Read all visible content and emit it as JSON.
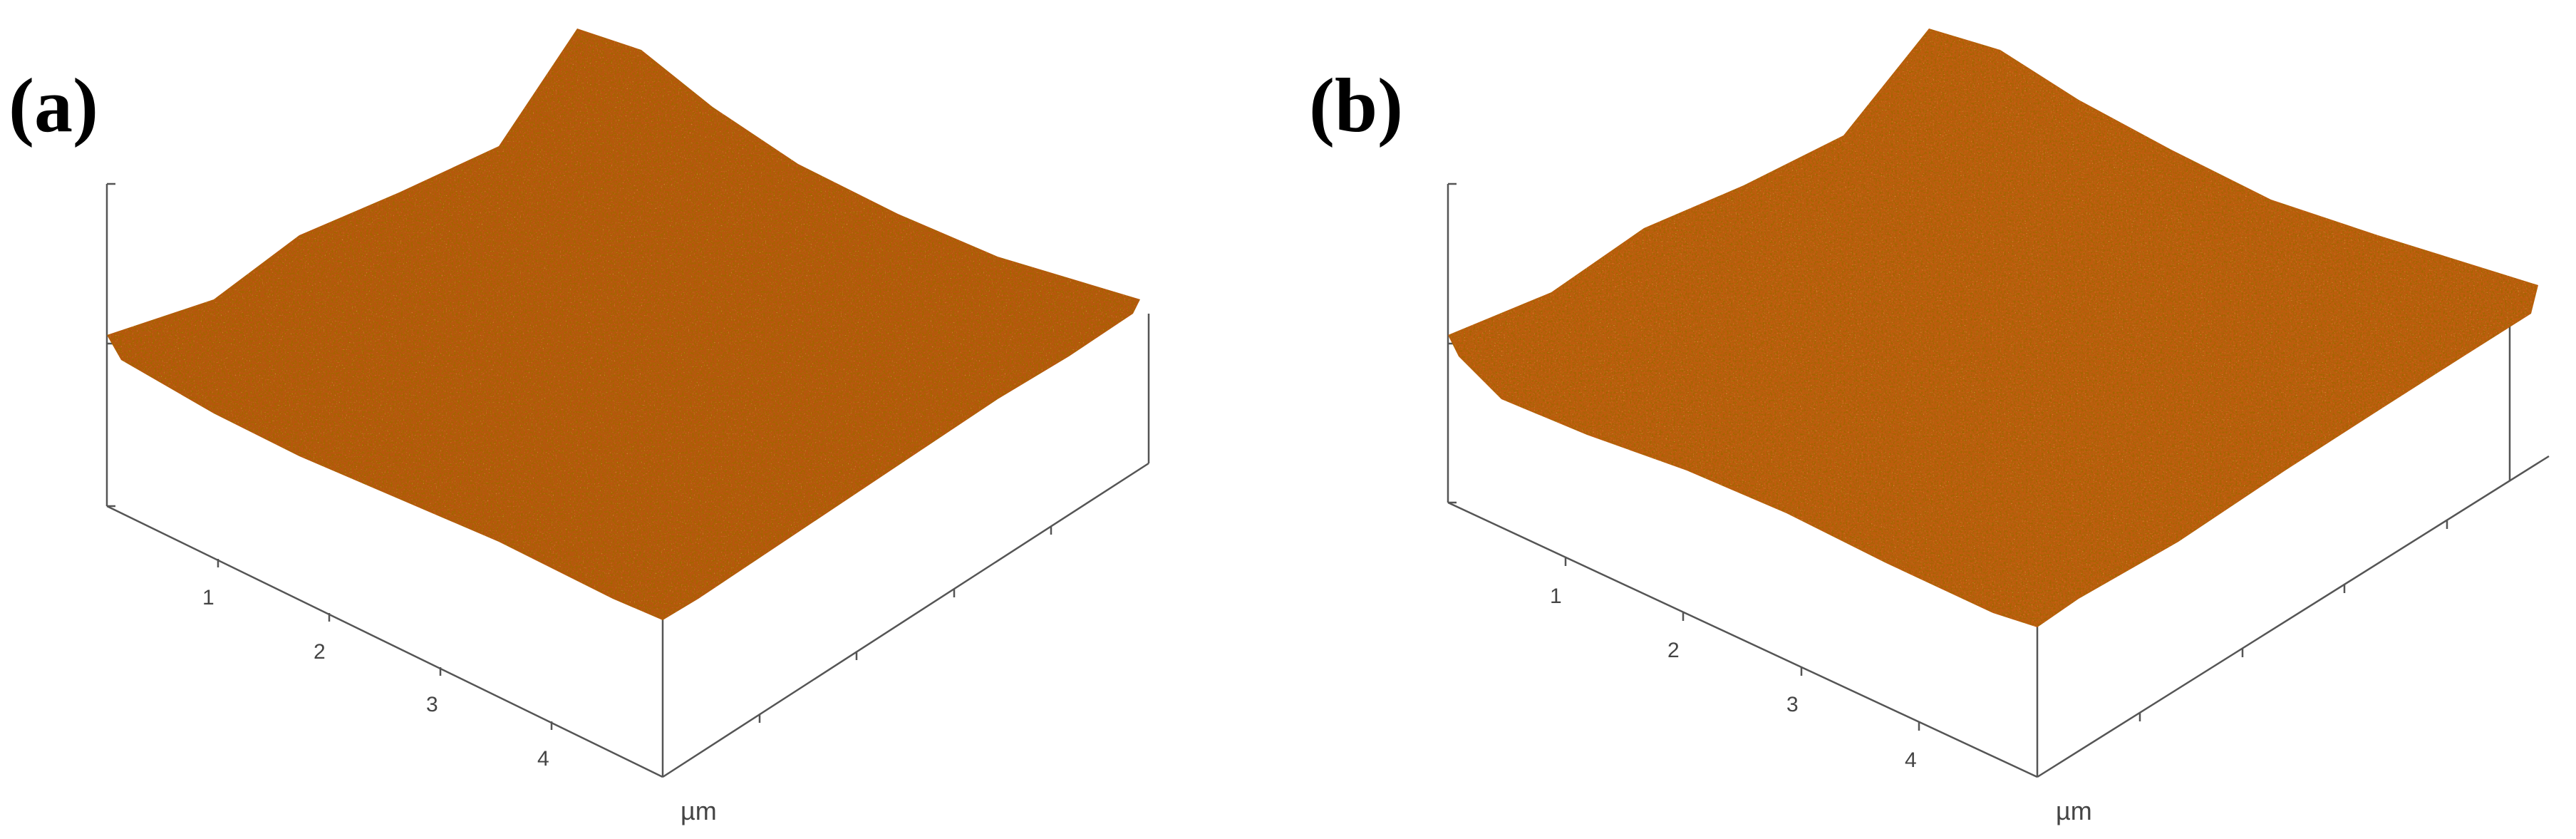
{
  "panels": [
    {
      "id": "a",
      "label": "(a)",
      "x_tick_labels": [
        "1",
        "2",
        "3",
        "4"
      ],
      "unit": "µm",
      "surface_colors": {
        "dark": "#6e2c00",
        "mid": "#b8560c",
        "light": "#d8901e"
      }
    },
    {
      "id": "b",
      "label": "(b)",
      "x_tick_labels": [
        "1",
        "2",
        "3",
        "4"
      ],
      "unit": "µm",
      "surface_colors": {
        "dark": "#6e2c00",
        "mid": "#bf5b0e",
        "light": "#dc9422"
      }
    }
  ]
}
